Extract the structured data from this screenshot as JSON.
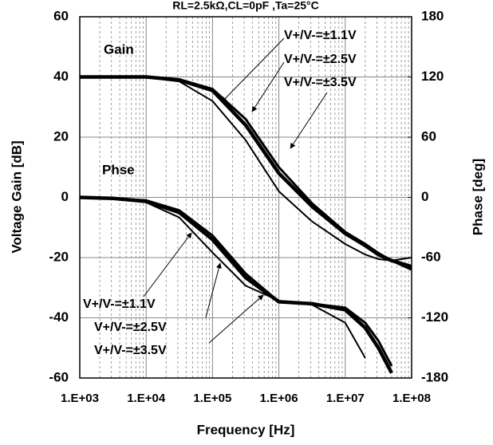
{
  "chart_data": {
    "type": "line",
    "title": "RL=2.5kΩ,CL=0pF ,Ta=25°C",
    "x_label": "Frequency [Hz]",
    "y_label": "Voltage Gain [dB]",
    "y2_label": "Phase [deg]",
    "annotations": [
      "Gain",
      "Phse"
    ],
    "x_log": true,
    "grid": true,
    "x": [
      1000,
      3160,
      10000,
      31600,
      100000,
      316000,
      1000000,
      3160000,
      10000000,
      20000000,
      31600000,
      50000000,
      100000000
    ],
    "series": [
      {
        "name": "V+/V-=±1.1V",
        "color": "#000000",
        "line_width": 2,
        "values": [
          40,
          40,
          39.8,
          38.5,
          32,
          19,
          2,
          -8,
          -15.5,
          -19,
          -20.5,
          -21,
          -20
        ]
      },
      {
        "name": "V+/V-=±2.5V",
        "color": "#000000",
        "line_width": 4.5,
        "values": [
          40,
          40,
          40,
          39,
          35.5,
          24,
          8,
          -3,
          -12,
          -16,
          -19,
          -21,
          -23
        ]
      },
      {
        "name": "V+/V-=±3.5V",
        "color": "#000000",
        "line_width": 3,
        "values": [
          40,
          40,
          40,
          39.2,
          36,
          26,
          10,
          -2,
          -11.5,
          -15.5,
          -18.5,
          -21,
          -24
        ]
      },
      {
        "name": "V+/V-=±1.1V",
        "color": "#000000",
        "line_width": 2,
        "axis": "y2",
        "values": [
          0,
          -1,
          -5,
          -20,
          -55,
          -88,
          -103,
          -107,
          -125,
          -160,
          null,
          null,
          null
        ]
      },
      {
        "name": "V+/V-=±2.5V",
        "color": "#000000",
        "line_width": 4.5,
        "axis": "y2",
        "values": [
          0,
          -1,
          -4,
          -15,
          -42,
          -80,
          -104,
          -106,
          -112,
          -130,
          -150,
          -175,
          null
        ]
      },
      {
        "name": "V+/V-=±3.5V",
        "color": "#000000",
        "line_width": 3,
        "axis": "y2",
        "values": [
          0,
          -1,
          -3,
          -13,
          -38,
          -76,
          -104,
          -106,
          -110,
          -125,
          -143,
          -168,
          null
        ]
      }
    ],
    "xlim": [
      1000,
      100000000
    ],
    "xticks": [
      {
        "value": 1000,
        "label": "1.E+03"
      },
      {
        "value": 10000,
        "label": "1.E+04"
      },
      {
        "value": 100000,
        "label": "1.E+05"
      },
      {
        "value": 1000000,
        "label": "1.E+06"
      },
      {
        "value": 10000000,
        "label": "1.E+07"
      },
      {
        "value": 100000000,
        "label": "1.E+08"
      }
    ],
    "ylim": [
      -60,
      60
    ],
    "yticks": [
      -60,
      -40,
      -20,
      0,
      20,
      40,
      60
    ],
    "y2lim": [
      -180,
      180
    ],
    "y2ticks": [
      -180,
      -120,
      -60,
      0,
      60,
      120,
      180
    ]
  }
}
